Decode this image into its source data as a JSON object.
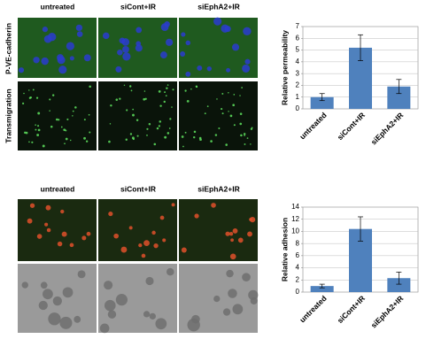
{
  "panels": {
    "top": {
      "columns": [
        "untreated",
        "siCont+IR",
        "siEphA2+IR"
      ],
      "rows": [
        "P-VE-cadherin",
        "Transmigration"
      ]
    },
    "bottom": {
      "columns": [
        "untreated",
        "siCont+IR",
        "siEphA2+IR"
      ]
    }
  },
  "chart_data": [
    {
      "type": "bar",
      "y_label": "Relative permeability",
      "categories": [
        "untreated",
        "siCont+IR",
        "siEphA2+IR"
      ],
      "values": [
        1.0,
        5.2,
        1.9
      ],
      "errors": [
        0.3,
        1.1,
        0.6
      ],
      "color": "#4f81bd",
      "ylim": [
        0,
        7
      ],
      "yticks": [
        0,
        1,
        2,
        3,
        4,
        5,
        6,
        7
      ],
      "grid": true
    },
    {
      "type": "bar",
      "y_label": "Relative adhesion",
      "categories": [
        "untreated",
        "siCont+IR",
        "siEphA2+IR"
      ],
      "values": [
        1.0,
        10.4,
        2.3
      ],
      "errors": [
        0.3,
        2.0,
        1.0
      ],
      "color": "#4f81bd",
      "ylim": [
        0,
        14
      ],
      "yticks": [
        0,
        2,
        4,
        6,
        8,
        10,
        12,
        14
      ],
      "grid": true
    }
  ]
}
